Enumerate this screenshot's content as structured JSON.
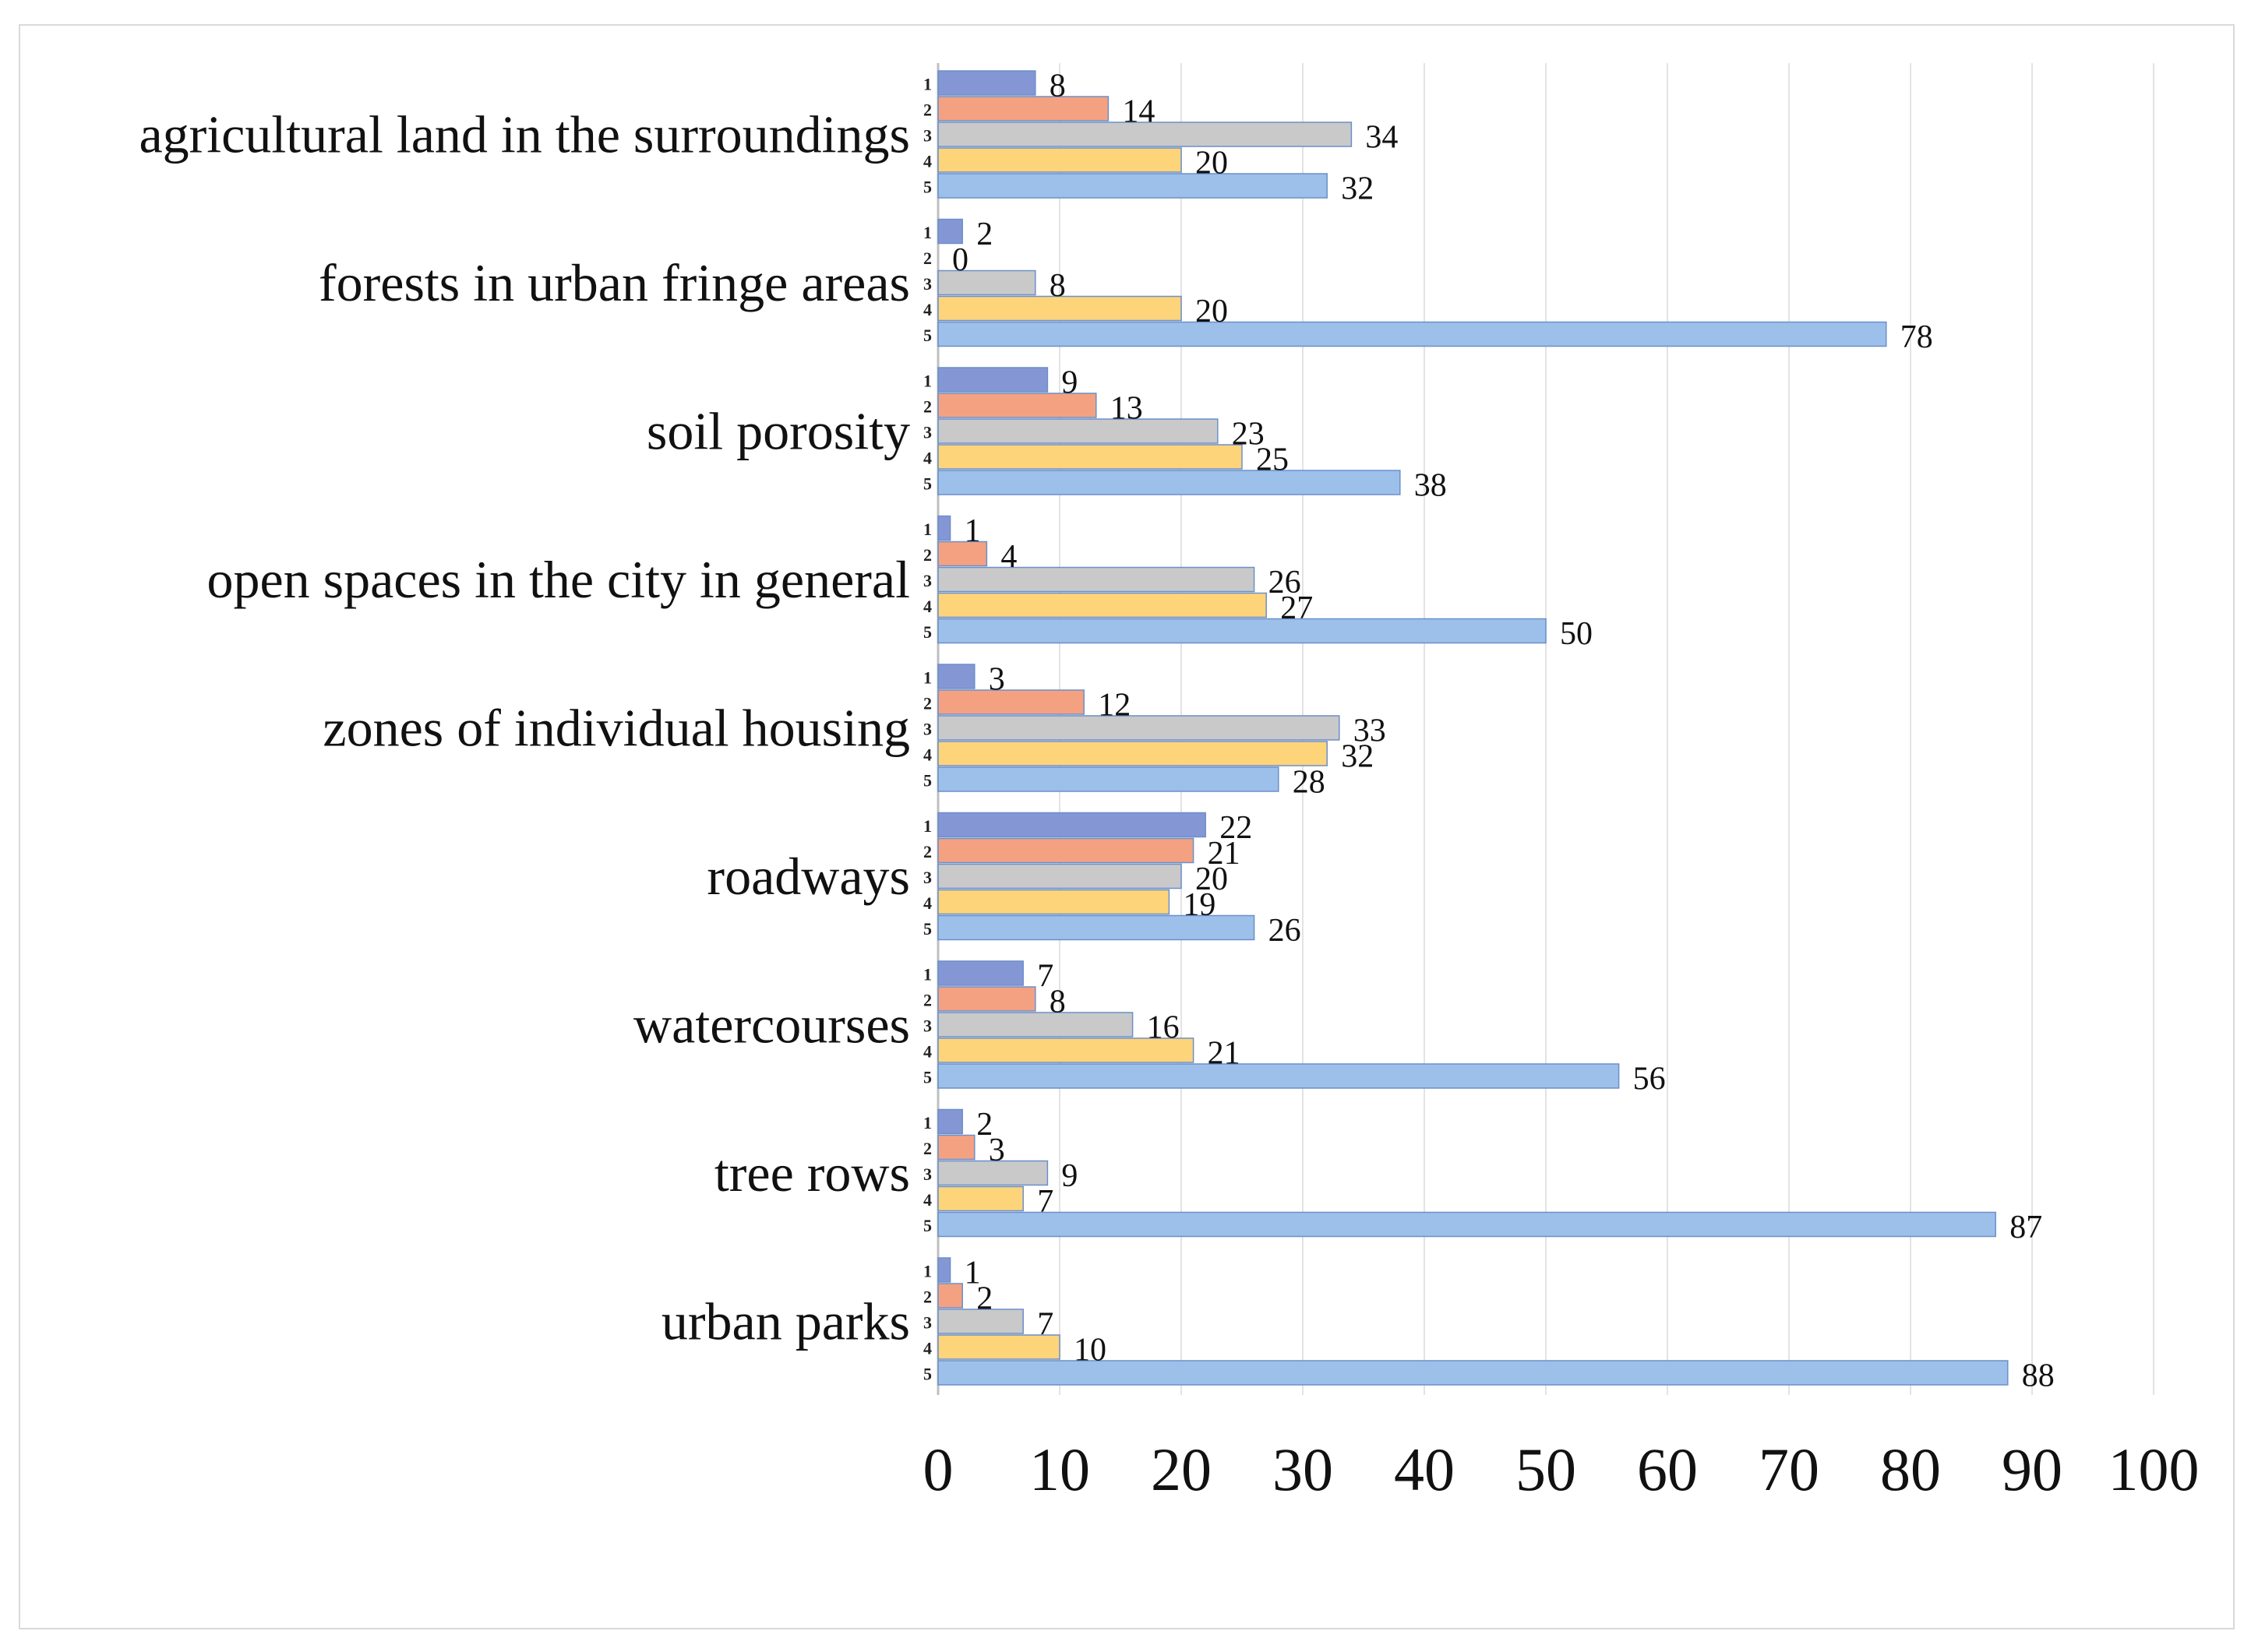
{
  "chart_data": {
    "type": "bar",
    "orientation": "horizontal",
    "title": "",
    "xlabel": "",
    "ylabel": "",
    "xlim": [
      0,
      100
    ],
    "xticks": [
      "0",
      "10",
      "20",
      "30",
      "40",
      "50",
      "60",
      "70",
      "80",
      "90",
      "100"
    ],
    "grid": true,
    "legend": "none",
    "categories": [
      "agricultural land in the surroundings",
      "forests in urban fringe areas",
      "soil porosity",
      "open spaces in the city in general",
      "zones of individual housing",
      "roadways",
      "watercourses",
      "tree rows",
      "urban parks"
    ],
    "series": [
      {
        "name": "1",
        "color": "#8497d4",
        "values": [
          8,
          2,
          9,
          1,
          3,
          22,
          7,
          2,
          1
        ]
      },
      {
        "name": "2",
        "color": "#f4a182",
        "values": [
          14,
          0,
          13,
          4,
          12,
          21,
          8,
          3,
          2
        ]
      },
      {
        "name": "3",
        "color": "#c9c9c9",
        "values": [
          34,
          8,
          23,
          26,
          33,
          20,
          16,
          9,
          7
        ]
      },
      {
        "name": "4",
        "color": "#fdd47a",
        "values": [
          20,
          20,
          25,
          27,
          32,
          19,
          21,
          7,
          10
        ]
      },
      {
        "name": "5",
        "color": "#9dc0ea",
        "values": [
          32,
          78,
          38,
          50,
          28,
          26,
          56,
          87,
          88
        ]
      }
    ]
  }
}
